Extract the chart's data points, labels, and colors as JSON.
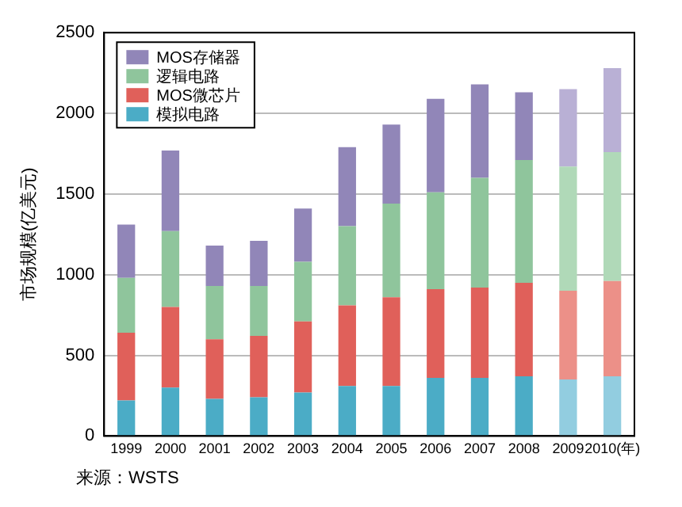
{
  "chart_data": {
    "type": "bar",
    "stacked": true,
    "ylabel": "市场规模(亿美元)",
    "categories": [
      "1999",
      "2000",
      "2001",
      "2002",
      "2003",
      "2004",
      "2005",
      "2006",
      "2007",
      "2008",
      "2009",
      "2010(年)"
    ],
    "series": [
      {
        "name": "模拟电路",
        "color": "#4bacc6",
        "colors": [
          "#4bacc6",
          "#4bacc6",
          "#4bacc6",
          "#4bacc6",
          "#4bacc6",
          "#4bacc6",
          "#4bacc6",
          "#4bacc6",
          "#4bacc6",
          "#4bacc6",
          "#92cde0",
          "#92cde0"
        ],
        "values": [
          220,
          300,
          230,
          240,
          270,
          310,
          310,
          360,
          360,
          370,
          350,
          370
        ]
      },
      {
        "name": "MOS微芯片",
        "color": "#e0605a",
        "colors": [
          "#e0605a",
          "#e0605a",
          "#e0605a",
          "#e0605a",
          "#e0605a",
          "#e0605a",
          "#e0605a",
          "#e0605a",
          "#e0605a",
          "#e0605a",
          "#ec9088",
          "#ec9088"
        ],
        "values": [
          420,
          500,
          370,
          380,
          440,
          500,
          550,
          550,
          560,
          580,
          550,
          590
        ]
      },
      {
        "name": "逻辑电路",
        "color": "#8fc59c",
        "colors": [
          "#8fc59c",
          "#8fc59c",
          "#8fc59c",
          "#8fc59c",
          "#8fc59c",
          "#8fc59c",
          "#8fc59c",
          "#8fc59c",
          "#8fc59c",
          "#8fc59c",
          "#b0d9b8",
          "#b0d9b8"
        ],
        "values": [
          340,
          470,
          330,
          310,
          370,
          490,
          580,
          600,
          680,
          760,
          770,
          800
        ]
      },
      {
        "name": "MOS存储器",
        "color": "#9186b8",
        "colors": [
          "#9186b8",
          "#9186b8",
          "#9186b8",
          "#9186b8",
          "#9186b8",
          "#9186b8",
          "#9186b8",
          "#9186b8",
          "#9186b8",
          "#9186b8",
          "#b9b0d5",
          "#b9b0d5"
        ],
        "values": [
          330,
          500,
          250,
          280,
          330,
          490,
          490,
          580,
          580,
          420,
          480,
          520
        ]
      }
    ],
    "ylim": [
      0,
      2500
    ],
    "yticks": [
      0,
      500,
      1000,
      1500,
      2000,
      2500
    ],
    "grid": "y",
    "legend": "top left",
    "annotations": [
      "来源：WSTS"
    ]
  }
}
